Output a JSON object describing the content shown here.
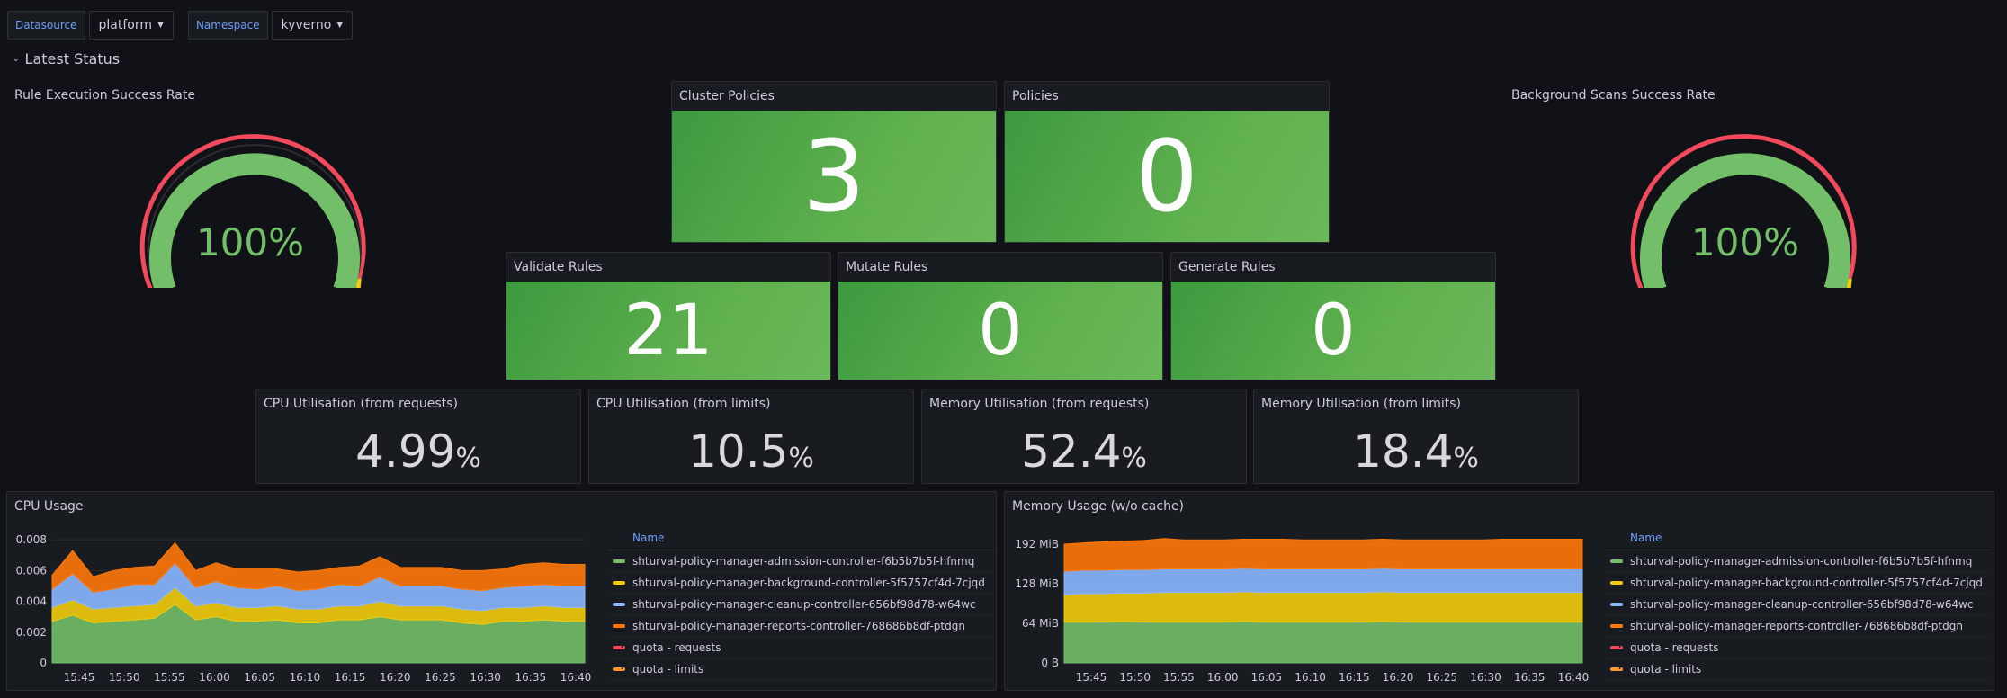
{
  "variables": [
    {
      "label": "Datasource",
      "value": "platform"
    },
    {
      "label": "Namespace",
      "value": "kyverno"
    }
  ],
  "row_title": "Latest Status",
  "gauges": [
    {
      "title": "Rule Execution Success Rate",
      "value": "100%",
      "level": 1.0
    },
    {
      "title": "Background Scans Success Rate",
      "value": "100%",
      "level": 1.0
    }
  ],
  "stats_top": [
    {
      "title": "Cluster Policies",
      "value": "3"
    },
    {
      "title": "Policies",
      "value": "0"
    }
  ],
  "stats_mid": [
    {
      "title": "Validate Rules",
      "value": "21"
    },
    {
      "title": "Mutate Rules",
      "value": "0"
    },
    {
      "title": "Generate Rules",
      "value": "0"
    }
  ],
  "util": [
    {
      "title": "CPU Utilisation (from requests)",
      "value": "4.99",
      "unit": "%"
    },
    {
      "title": "CPU Utilisation (from limits)",
      "value": "10.5",
      "unit": "%"
    },
    {
      "title": "Memory Utilisation (from requests)",
      "value": "52.4",
      "unit": "%"
    },
    {
      "title": "Memory Utilisation (from limits)",
      "value": "18.4",
      "unit": "%"
    }
  ],
  "colors": {
    "green": "#73bf69",
    "yellow": "#f2cc0c",
    "blue": "#8ab8ff",
    "orange": "#ff780a",
    "red": "#f2495c",
    "quota_limits": "#ff9830"
  },
  "legend_header": "Name",
  "legend_items": [
    {
      "name": "shturval-policy-manager-admission-controller-f6b5b7b5f-hfnmq",
      "color": "#73bf69",
      "dashed": false
    },
    {
      "name": "shturval-policy-manager-background-controller-5f5757cf4d-7cjqd",
      "color": "#f2cc0c",
      "dashed": false
    },
    {
      "name": "shturval-policy-manager-cleanup-controller-656bf98d78-w64wc",
      "color": "#8ab8ff",
      "dashed": false
    },
    {
      "name": "shturval-policy-manager-reports-controller-768686b8df-ptdgn",
      "color": "#ff780a",
      "dashed": false
    },
    {
      "name": "quota - requests",
      "color": "#f2495c",
      "dashed": true
    },
    {
      "name": "quota - limits",
      "color": "#ff9830",
      "dashed": true
    }
  ],
  "chart_data": [
    {
      "title": "CPU Usage",
      "type": "area",
      "stacked": true,
      "x_ticks": [
        "15:45",
        "15:50",
        "15:55",
        "16:00",
        "16:05",
        "16:10",
        "16:15",
        "16:20",
        "16:25",
        "16:30",
        "16:35",
        "16:40"
      ],
      "y_ticks": [
        "0",
        "0.002",
        "0.004",
        "0.006",
        "0.008"
      ],
      "ylim": [
        0,
        0.009
      ],
      "series": [
        {
          "name": "shturval-policy-manager-admission-controller-f6b5b7b5f-hfnmq",
          "values": [
            0.0027,
            0.0031,
            0.0026,
            0.0027,
            0.0028,
            0.0029,
            0.0038,
            0.0028,
            0.003,
            0.0027,
            0.0027,
            0.0028,
            0.0026,
            0.0026,
            0.0028,
            0.0028,
            0.003,
            0.0028,
            0.0028,
            0.0028,
            0.0026,
            0.0025,
            0.0027,
            0.0027,
            0.0028,
            0.0027,
            0.0027
          ]
        },
        {
          "name": "shturval-policy-manager-background-controller-5f5757cf4d-7cjqd",
          "values": [
            0.0009,
            0.001,
            0.0009,
            0.0009,
            0.0009,
            0.0009,
            0.0011,
            0.0009,
            0.0009,
            0.0009,
            0.0009,
            0.0009,
            0.0009,
            0.0009,
            0.0009,
            0.0009,
            0.001,
            0.0009,
            0.0009,
            0.0009,
            0.0009,
            0.0009,
            0.0009,
            0.0009,
            0.0009,
            0.0009,
            0.0009
          ]
        },
        {
          "name": "shturval-policy-manager-cleanup-controller-656bf98d78-w64wc",
          "values": [
            0.0012,
            0.0017,
            0.0011,
            0.0012,
            0.0014,
            0.0013,
            0.0016,
            0.0012,
            0.0014,
            0.0013,
            0.0012,
            0.0013,
            0.0012,
            0.0013,
            0.0014,
            0.0013,
            0.0016,
            0.0013,
            0.0013,
            0.0013,
            0.0013,
            0.0013,
            0.0013,
            0.0014,
            0.0014,
            0.0014,
            0.0014
          ]
        },
        {
          "name": "shturval-policy-manager-reports-controller-768686b8df-ptdgn",
          "values": [
            0.0009,
            0.0015,
            0.001,
            0.0012,
            0.0011,
            0.0012,
            0.0013,
            0.0011,
            0.0012,
            0.0012,
            0.0013,
            0.0011,
            0.0012,
            0.0012,
            0.0011,
            0.0013,
            0.0013,
            0.0012,
            0.0012,
            0.0012,
            0.0012,
            0.0013,
            0.0012,
            0.0014,
            0.0014,
            0.0014,
            0.0014
          ]
        }
      ]
    },
    {
      "title": "Memory Usage (w/o cache)",
      "type": "area",
      "stacked": true,
      "x_ticks": [
        "15:45",
        "15:50",
        "15:55",
        "16:00",
        "16:05",
        "16:10",
        "16:15",
        "16:20",
        "16:25",
        "16:30",
        "16:35",
        "16:40"
      ],
      "y_ticks": [
        "0 B",
        "64 MiB",
        "128 MiB",
        "192 MiB"
      ],
      "ylim": [
        0,
        224
      ],
      "series": [
        {
          "name": "shturval-policy-manager-admission-controller-f6b5b7b5f-hfnmq",
          "values": [
            66,
            66,
            66,
            67,
            66,
            66,
            66,
            66,
            66,
            67,
            66,
            66,
            66,
            66,
            66,
            66,
            67,
            66,
            66,
            66,
            66,
            66,
            66,
            66,
            66,
            66,
            66
          ]
        },
        {
          "name": "shturval-policy-manager-background-controller-5f5757cf4d-7cjqd",
          "values": [
            44,
            46,
            46,
            46,
            47,
            48,
            48,
            48,
            48,
            48,
            48,
            48,
            48,
            48,
            48,
            48,
            48,
            48,
            48,
            48,
            48,
            48,
            48,
            48,
            48,
            48,
            48
          ]
        },
        {
          "name": "shturval-policy-manager-cleanup-controller-656bf98d78-w64wc",
          "values": [
            38,
            38,
            38,
            38,
            38,
            38,
            38,
            38,
            38,
            38,
            38,
            38,
            38,
            38,
            38,
            38,
            38,
            38,
            38,
            38,
            38,
            38,
            38,
            38,
            38,
            38,
            38
          ]
        },
        {
          "name": "shturval-policy-manager-reports-controller-768686b8df-ptdgn",
          "values": [
            44,
            44,
            46,
            46,
            47,
            49,
            47,
            47,
            47,
            47,
            48,
            48,
            47,
            47,
            47,
            47,
            47,
            47,
            47,
            47,
            47,
            47,
            48,
            48,
            48,
            48,
            48
          ]
        }
      ]
    }
  ]
}
